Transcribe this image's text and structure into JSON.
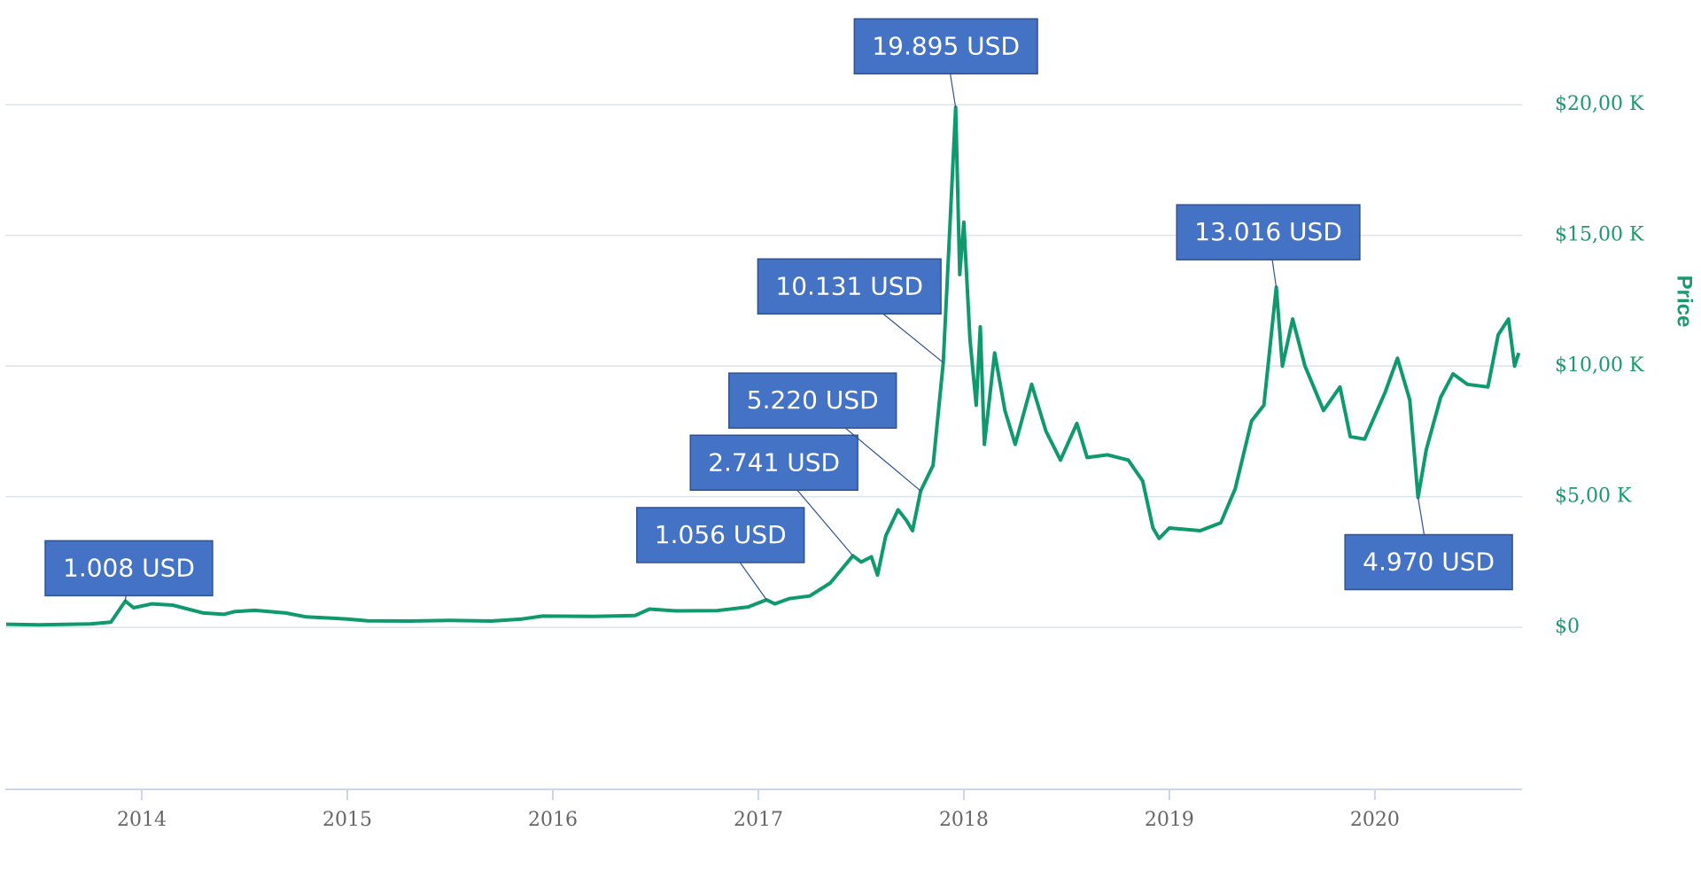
{
  "chart_data": {
    "type": "line",
    "y_axis_label": "Price",
    "y_axis_side": "right",
    "grid": true,
    "color": "#0f9a6e",
    "xlim": [
      2013.336,
      2020.716
    ],
    "xticks": [
      2014,
      2015,
      2016,
      2017,
      2018,
      2019,
      2020
    ],
    "ylim": [
      -6200,
      23600
    ],
    "yticks": [
      {
        "value": 0,
        "label": "$0"
      },
      {
        "value": 5000,
        "label": "$5,00 K"
      },
      {
        "value": 10000,
        "label": "$10,00 K"
      },
      {
        "value": 15000,
        "label": "$15,00 K"
      },
      {
        "value": 20000,
        "label": "$20,00 K"
      }
    ],
    "x": [
      2013.34,
      2013.5,
      2013.75,
      2013.85,
      2013.92,
      2013.96,
      2014.05,
      2014.15,
      2014.3,
      2014.4,
      2014.45,
      2014.55,
      2014.7,
      2014.8,
      2015.0,
      2015.1,
      2015.3,
      2015.5,
      2015.7,
      2015.85,
      2015.95,
      2016.2,
      2016.4,
      2016.47,
      2016.6,
      2016.8,
      2016.95,
      2017.04,
      2017.08,
      2017.15,
      2017.25,
      2017.35,
      2017.46,
      2017.5,
      2017.55,
      2017.58,
      2017.62,
      2017.68,
      2017.72,
      2017.75,
      2017.79,
      2017.85,
      2017.9,
      2017.93,
      2017.96,
      2017.98,
      2018.0,
      2018.03,
      2018.06,
      2018.08,
      2018.1,
      2018.15,
      2018.2,
      2018.25,
      2018.33,
      2018.4,
      2018.47,
      2018.55,
      2018.6,
      2018.7,
      2018.8,
      2018.87,
      2018.92,
      2018.95,
      2019.0,
      2019.15,
      2019.25,
      2019.32,
      2019.4,
      2019.46,
      2019.52,
      2019.55,
      2019.6,
      2019.66,
      2019.75,
      2019.83,
      2019.88,
      2019.95,
      2020.05,
      2020.11,
      2020.17,
      2020.21,
      2020.25,
      2020.32,
      2020.38,
      2020.45,
      2020.55,
      2020.6,
      2020.65,
      2020.68,
      2020.7
    ],
    "values": [
      120,
      100,
      130,
      200,
      1008,
      750,
      900,
      850,
      550,
      500,
      600,
      650,
      550,
      400,
      320,
      250,
      240,
      270,
      240,
      320,
      430,
      420,
      450,
      700,
      630,
      640,
      780,
      1056,
      900,
      1100,
      1200,
      1700,
      2741,
      2500,
      2700,
      2000,
      3500,
      4500,
      4100,
      3700,
      5220,
      6200,
      10131,
      15000,
      19895,
      13500,
      15500,
      11000,
      8500,
      11500,
      7000,
      10500,
      8300,
      7000,
      9300,
      7500,
      6400,
      7800,
      6500,
      6600,
      6400,
      5600,
      3800,
      3400,
      3800,
      3700,
      4000,
      5300,
      7900,
      8500,
      13016,
      10000,
      11800,
      10000,
      8300,
      9200,
      7300,
      7200,
      9000,
      10300,
      8700,
      4970,
      6800,
      8800,
      9700,
      9300,
      9200,
      11200,
      11800,
      10000,
      10500
    ],
    "annotations": [
      {
        "label": "1.008 USD",
        "x": 2013.92,
        "value": 1008
      },
      {
        "label": "1.056 USD",
        "x": 2017.04,
        "value": 1056
      },
      {
        "label": "2.741 USD",
        "x": 2017.46,
        "value": 2741
      },
      {
        "label": "5.220 USD",
        "x": 2017.79,
        "value": 5220
      },
      {
        "label": "10.131 USD",
        "x": 2017.9,
        "value": 10131
      },
      {
        "label": "19.895 USD",
        "x": 2017.96,
        "value": 19895
      },
      {
        "label": "13.016 USD",
        "x": 2019.52,
        "value": 13016
      },
      {
        "label": "4.970 USD",
        "x": 2020.21,
        "value": 4970
      }
    ]
  }
}
